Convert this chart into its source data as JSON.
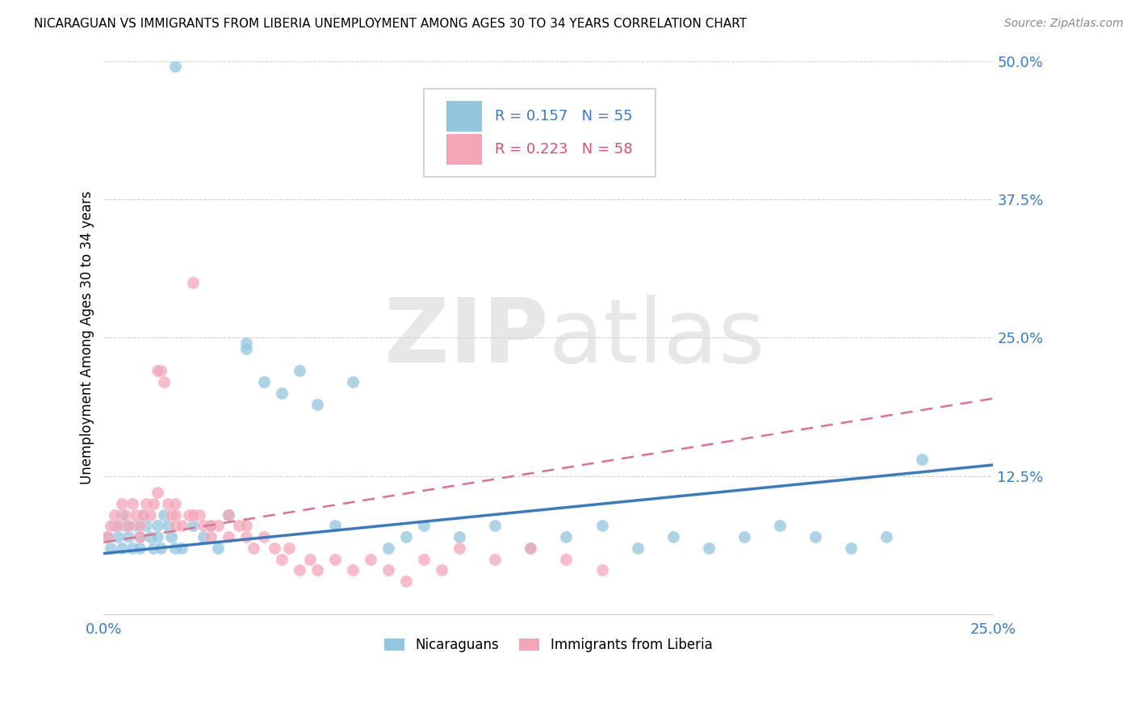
{
  "title": "NICARAGUAN VS IMMIGRANTS FROM LIBERIA UNEMPLOYMENT AMONG AGES 30 TO 34 YEARS CORRELATION CHART",
  "source": "Source: ZipAtlas.com",
  "ylabel": "Unemployment Among Ages 30 to 34 years",
  "legend_R": [
    0.157,
    0.223
  ],
  "legend_N": [
    55,
    58
  ],
  "blue_color": "#92c5de",
  "pink_color": "#f4a6b8",
  "blue_line_color": "#3a7abf",
  "pink_line_color": "#e07090",
  "xlim": [
    0.0,
    0.25
  ],
  "ylim": [
    0.0,
    0.5
  ],
  "yticks": [
    0.0,
    0.125,
    0.25,
    0.375,
    0.5
  ],
  "ytick_labels": [
    "",
    "12.5%",
    "25.0%",
    "37.5%",
    "50.0%"
  ],
  "blue_scatter_x": [
    0.001,
    0.002,
    0.003,
    0.004,
    0.005,
    0.005,
    0.006,
    0.007,
    0.008,
    0.009,
    0.01,
    0.01,
    0.011,
    0.012,
    0.013,
    0.014,
    0.015,
    0.015,
    0.016,
    0.017,
    0.018,
    0.019,
    0.02,
    0.02,
    0.022,
    0.025,
    0.028,
    0.03,
    0.032,
    0.035,
    0.04,
    0.04,
    0.045,
    0.05,
    0.055,
    0.06,
    0.065,
    0.07,
    0.08,
    0.085,
    0.09,
    0.1,
    0.11,
    0.12,
    0.13,
    0.14,
    0.15,
    0.16,
    0.17,
    0.18,
    0.19,
    0.2,
    0.21,
    0.22,
    0.23
  ],
  "blue_scatter_y": [
    0.07,
    0.06,
    0.08,
    0.07,
    0.09,
    0.06,
    0.08,
    0.07,
    0.06,
    0.08,
    0.07,
    0.06,
    0.09,
    0.08,
    0.07,
    0.06,
    0.08,
    0.07,
    0.06,
    0.09,
    0.08,
    0.07,
    0.495,
    0.06,
    0.06,
    0.08,
    0.07,
    0.08,
    0.06,
    0.09,
    0.245,
    0.24,
    0.21,
    0.2,
    0.22,
    0.19,
    0.08,
    0.21,
    0.06,
    0.07,
    0.08,
    0.07,
    0.08,
    0.06,
    0.07,
    0.08,
    0.06,
    0.07,
    0.06,
    0.07,
    0.08,
    0.07,
    0.06,
    0.07,
    0.14
  ],
  "pink_scatter_x": [
    0.001,
    0.002,
    0.003,
    0.004,
    0.005,
    0.006,
    0.007,
    0.008,
    0.009,
    0.01,
    0.01,
    0.011,
    0.012,
    0.013,
    0.014,
    0.015,
    0.016,
    0.017,
    0.018,
    0.019,
    0.02,
    0.02,
    0.022,
    0.024,
    0.025,
    0.027,
    0.028,
    0.03,
    0.032,
    0.035,
    0.038,
    0.04,
    0.042,
    0.045,
    0.048,
    0.05,
    0.052,
    0.055,
    0.058,
    0.06,
    0.065,
    0.07,
    0.075,
    0.08,
    0.085,
    0.09,
    0.095,
    0.1,
    0.11,
    0.12,
    0.13,
    0.14,
    0.015,
    0.02,
    0.025,
    0.03,
    0.035,
    0.04
  ],
  "pink_scatter_y": [
    0.07,
    0.08,
    0.09,
    0.08,
    0.1,
    0.09,
    0.08,
    0.1,
    0.09,
    0.08,
    0.07,
    0.09,
    0.1,
    0.09,
    0.1,
    0.11,
    0.22,
    0.21,
    0.1,
    0.09,
    0.08,
    0.09,
    0.08,
    0.09,
    0.3,
    0.09,
    0.08,
    0.07,
    0.08,
    0.09,
    0.08,
    0.07,
    0.06,
    0.07,
    0.06,
    0.05,
    0.06,
    0.04,
    0.05,
    0.04,
    0.05,
    0.04,
    0.05,
    0.04,
    0.03,
    0.05,
    0.04,
    0.06,
    0.05,
    0.06,
    0.05,
    0.04,
    0.22,
    0.1,
    0.09,
    0.08,
    0.07,
    0.08
  ],
  "blue_line_x": [
    0.0,
    0.25
  ],
  "blue_line_y": [
    0.055,
    0.135
  ],
  "pink_line_x": [
    0.0,
    0.25
  ],
  "pink_line_y": [
    0.065,
    0.195
  ]
}
